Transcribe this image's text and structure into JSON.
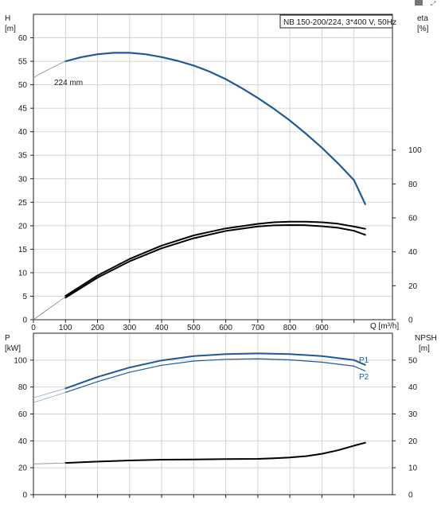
{
  "toolbar": {
    "icons": [
      "square-icon",
      "expand-icon"
    ]
  },
  "chart_data": [
    {
      "type": "line",
      "title": "NB 150-200/224, 3*400 V, 50Hz",
      "xlabel": "Q [m³/h]",
      "x_ticks": [
        "0",
        "100",
        "200",
        "300",
        "400",
        "500",
        "600",
        "700",
        "800",
        "900"
      ],
      "xlim": [
        0,
        1120
      ],
      "ylabel_left": [
        "H",
        "[m]"
      ],
      "ylim_left": [
        0,
        65
      ],
      "y_ticks_left": [
        "0",
        "5",
        "10",
        "15",
        "20",
        "25",
        "30",
        "35",
        "40",
        "45",
        "50",
        "55",
        "60"
      ],
      "ylabel_right": [
        "eta",
        "[%]"
      ],
      "ylim_right": [
        0,
        180
      ],
      "y_ticks_right": [
        "0",
        "20",
        "40",
        "60",
        "80",
        "100"
      ],
      "grid": true,
      "annotations": [
        {
          "text": "224 mm",
          "x": 110,
          "y": 55.3
        }
      ],
      "series": [
        {
          "axis": "left",
          "color": "#1f5a96",
          "width": 2.2,
          "x": [
            100,
            150,
            200,
            250,
            300,
            350,
            400,
            450,
            500,
            550,
            600,
            650,
            700,
            750,
            800,
            850,
            900,
            950,
            1000,
            1035
          ],
          "y": [
            55.0,
            55.9,
            56.5,
            56.8,
            56.8,
            56.5,
            55.9,
            55.1,
            54.1,
            52.8,
            51.2,
            49.3,
            47.2,
            44.9,
            42.4,
            39.6,
            36.6,
            33.3,
            29.7,
            24.6
          ]
        },
        {
          "axis": "left",
          "color": "#888888",
          "width": 0.8,
          "x": [
            0,
            20,
            40,
            60,
            80,
            100
          ],
          "y": [
            51.5,
            52.3,
            53.0,
            53.7,
            54.4,
            55.0
          ]
        },
        {
          "axis": "right",
          "color": "#000000",
          "width": 2.0,
          "x": [
            100,
            200,
            300,
            400,
            500,
            600,
            700,
            750,
            800,
            850,
            900,
            950,
            1000,
            1035
          ],
          "y": [
            14.0,
            26.0,
            35.8,
            43.7,
            49.7,
            53.8,
            56.5,
            57.4,
            57.8,
            57.8,
            57.4,
            56.6,
            54.9,
            53.6
          ]
        },
        {
          "axis": "right",
          "color": "#000000",
          "width": 2.0,
          "x": [
            100,
            200,
            300,
            400,
            500,
            600,
            700,
            750,
            800,
            850,
            900,
            950,
            1000,
            1035
          ],
          "y": [
            13.0,
            24.8,
            34.4,
            42.1,
            48.0,
            52.3,
            55.0,
            55.6,
            55.8,
            55.7,
            55.1,
            54.2,
            52.4,
            50.0
          ]
        },
        {
          "axis": "right",
          "color": "#888888",
          "width": 0.8,
          "x": [
            0,
            50,
            100
          ],
          "y": [
            0,
            6.8,
            13.5
          ]
        }
      ]
    },
    {
      "type": "line",
      "xlabel": "",
      "x_ticks": [
        "0",
        "100",
        "200",
        "300",
        "400",
        "500",
        "600",
        "700",
        "800",
        "900"
      ],
      "xlim": [
        0,
        1120
      ],
      "ylabel_left": [
        "P",
        "[kW]"
      ],
      "ylim_left": [
        0,
        120
      ],
      "y_ticks_left": [
        "0",
        "20",
        "40",
        "60",
        "80",
        "100"
      ],
      "ylabel_right": [
        "NPSH",
        "[m]"
      ],
      "ylim_right": [
        0,
        60
      ],
      "y_ticks_right": [
        "0",
        "10",
        "20",
        "30",
        "40",
        "50"
      ],
      "grid": true,
      "series": [
        {
          "name": "P1",
          "axis": "left",
          "color": "#1f5a96",
          "width": 2.0,
          "x": [
            100,
            200,
            300,
            400,
            500,
            600,
            700,
            800,
            900,
            1000,
            1035
          ],
          "y": [
            79.0,
            87.5,
            94.5,
            99.8,
            103.0,
            104.5,
            105.0,
            104.5,
            103.0,
            100.0,
            96.5
          ]
        },
        {
          "name": "P2",
          "axis": "left",
          "color": "#1f5a96",
          "width": 1.2,
          "x": [
            100,
            200,
            300,
            400,
            500,
            600,
            700,
            800,
            900,
            1000,
            1035
          ],
          "y": [
            76.0,
            84.0,
            91.0,
            96.2,
            99.3,
            100.6,
            101.0,
            100.2,
            98.5,
            95.5,
            92.0
          ]
        },
        {
          "axis": "left",
          "color": "#7a95b8",
          "width": 0.7,
          "x": [
            0,
            50,
            100
          ],
          "y": [
            72.0,
            75.5,
            79.0
          ]
        },
        {
          "axis": "left",
          "color": "#7a95b8",
          "width": 0.7,
          "x": [
            0,
            50,
            100
          ],
          "y": [
            68.5,
            72.2,
            76.0
          ]
        },
        {
          "axis": "right",
          "color": "#000000",
          "width": 2.0,
          "x": [
            100,
            200,
            300,
            400,
            500,
            600,
            700,
            750,
            800,
            850,
            900,
            950,
            1000,
            1035
          ],
          "y": [
            11.8,
            12.3,
            12.7,
            13.0,
            13.1,
            13.2,
            13.3,
            13.5,
            13.8,
            14.3,
            15.2,
            16.5,
            18.2,
            19.3
          ]
        },
        {
          "axis": "right",
          "color": "#888888",
          "width": 0.8,
          "x": [
            0,
            50,
            100
          ],
          "y": [
            11.4,
            11.6,
            11.8
          ]
        }
      ],
      "series_labels": [
        {
          "text": "P1",
          "series": 0
        },
        {
          "text": "P2",
          "series": 1
        }
      ]
    }
  ]
}
